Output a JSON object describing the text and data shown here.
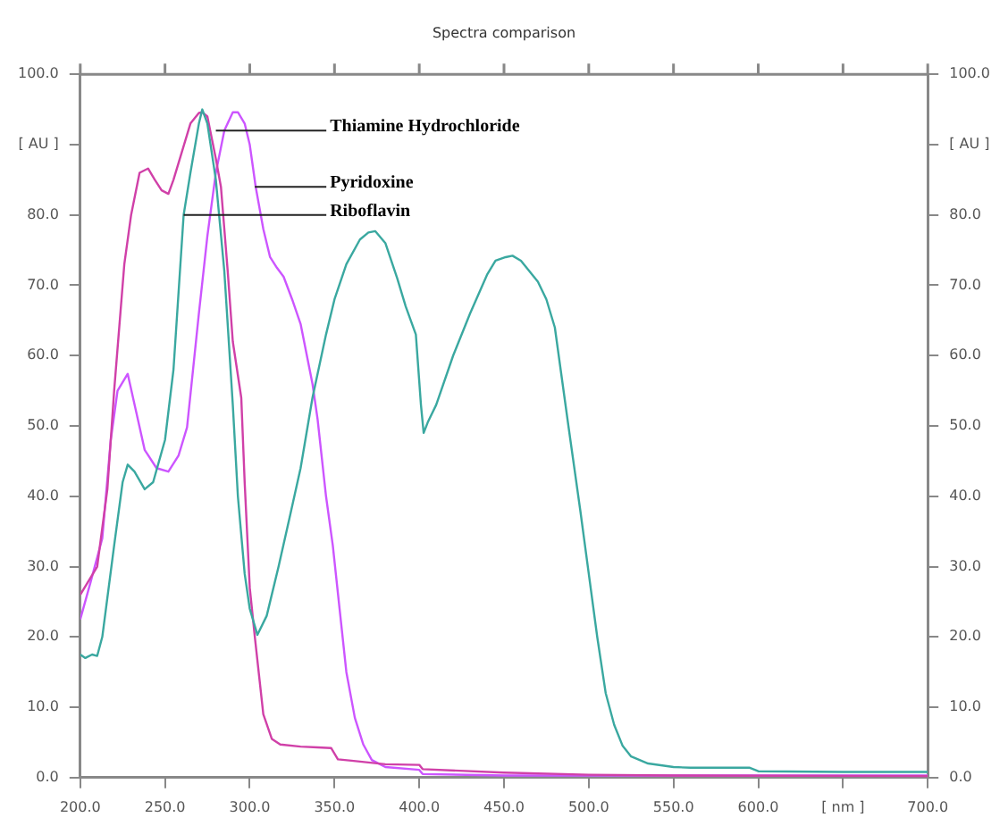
{
  "chart_data": {
    "type": "line",
    "title": "Spectra comparison",
    "xlim": [
      200,
      700
    ],
    "xticks": [
      {
        "value": 200,
        "label": "200.0"
      },
      {
        "value": 250,
        "label": "250.0"
      },
      {
        "value": 300,
        "label": "300.0"
      },
      {
        "value": 350,
        "label": "350.0"
      },
      {
        "value": 400,
        "label": "400.0"
      },
      {
        "value": 450,
        "label": "450.0"
      },
      {
        "value": 500,
        "label": "500.0"
      },
      {
        "value": 550,
        "label": "550.0"
      },
      {
        "value": 600,
        "label": "600.0"
      },
      {
        "value": 650,
        "label": "[ nm ]"
      },
      {
        "value": 700,
        "label": "700.0"
      }
    ],
    "ylim": [
      0,
      100
    ],
    "yticks": [
      {
        "value": 0,
        "label": "0.0"
      },
      {
        "value": 10,
        "label": "10.0"
      },
      {
        "value": 20,
        "label": "20.0"
      },
      {
        "value": 30,
        "label": "30.0"
      },
      {
        "value": 40,
        "label": "40.0"
      },
      {
        "value": 50,
        "label": "50.0"
      },
      {
        "value": 60,
        "label": "60.0"
      },
      {
        "value": 70,
        "label": "70.0"
      },
      {
        "value": 80,
        "label": "80.0"
      },
      {
        "value": 90,
        "label": "[ AU ]"
      },
      {
        "value": 100,
        "label": "100.0"
      }
    ],
    "y2lim": [
      0,
      100
    ],
    "y2ticks": [
      {
        "value": 0,
        "label": "0.0"
      },
      {
        "value": 10,
        "label": "10.0"
      },
      {
        "value": 20,
        "label": "20.0"
      },
      {
        "value": 30,
        "label": "30.0"
      },
      {
        "value": 40,
        "label": "40.0"
      },
      {
        "value": 50,
        "label": "50.0"
      },
      {
        "value": 60,
        "label": "60.0"
      },
      {
        "value": 70,
        "label": "70.0"
      },
      {
        "value": 80,
        "label": "80.0"
      },
      {
        "value": 90,
        "label": "[ AU ]"
      },
      {
        "value": 100,
        "label": "100.0"
      }
    ],
    "grid": false,
    "legend": false,
    "marker": "none",
    "line_style": "solid",
    "series": [
      {
        "color": "#3aa8a0",
        "x": [
          200,
          203,
          207,
          210,
          213,
          220,
          225,
          228,
          232,
          238,
          243,
          250,
          255,
          261,
          265,
          270,
          272,
          275,
          280,
          285,
          290,
          293,
          297,
          300,
          304.5,
          310,
          317,
          324,
          330,
          337,
          345,
          350,
          357,
          365,
          370,
          374,
          380,
          387,
          392,
          398,
          401,
          402.6,
          405,
          410,
          420,
          430,
          440,
          445,
          451,
          455,
          460,
          465,
          470,
          475,
          480,
          488,
          495,
          500,
          505,
          510,
          515,
          520,
          525,
          535,
          550,
          560,
          595,
          600,
          650,
          700
        ],
        "values": [
          17.5,
          17,
          17.5,
          17.3,
          20,
          33,
          42,
          44.5,
          43.5,
          41,
          42,
          48,
          58,
          80,
          86,
          93,
          95,
          93,
          85,
          72,
          53,
          40,
          29,
          24,
          20.3,
          23,
          30,
          37.5,
          44,
          54,
          63,
          68,
          73,
          76.5,
          77.5,
          77.7,
          76,
          71,
          67,
          63,
          53,
          49,
          50.5,
          53,
          60,
          66,
          71.5,
          73.5,
          74,
          74.2,
          73.5,
          72,
          70.5,
          68,
          64,
          50,
          38,
          29,
          20,
          12,
          7.5,
          4.5,
          3,
          2,
          1.5,
          1.4,
          1.4,
          0.9,
          0.8,
          0.8
        ]
      },
      {
        "color": "#d040a8",
        "x": [
          200,
          205,
          210,
          216,
          220,
          226,
          230,
          235,
          240,
          244,
          248,
          252,
          255,
          260,
          265,
          270,
          272,
          275,
          280,
          283,
          287,
          290,
          295,
          297,
          300,
          303,
          308,
          313,
          318,
          330,
          340,
          348,
          352,
          360,
          380,
          400,
          402,
          450,
          500,
          550,
          700
        ],
        "values": [
          26,
          28,
          30,
          41,
          55,
          73,
          80,
          86,
          86.6,
          85,
          83.5,
          83,
          85,
          89,
          93,
          94.5,
          94.6,
          94,
          88,
          84,
          72,
          62,
          54,
          42,
          27,
          20,
          9,
          5.5,
          4.7,
          4.4,
          4.3,
          4.2,
          2.6,
          2.4,
          1.9,
          1.8,
          1.2,
          0.7,
          0.4,
          0.3,
          0.2
        ]
      },
      {
        "color": "#cc55ff",
        "x": [
          200,
          206,
          213,
          218,
          222,
          228,
          233,
          238,
          245,
          252,
          258,
          263,
          270,
          275,
          280,
          285,
          290,
          293,
          297,
          300,
          303.5,
          308,
          312,
          316,
          320,
          325,
          330,
          337,
          340,
          345,
          349,
          353,
          357,
          362,
          367,
          372,
          380,
          400,
          402,
          450,
          700
        ],
        "values": [
          22.5,
          27.7,
          34,
          48,
          55,
          57.4,
          52,
          46.6,
          44,
          43.5,
          45.8,
          49.8,
          66,
          77,
          86,
          92,
          94.6,
          94.6,
          93,
          90,
          84,
          78,
          74,
          72.5,
          71.2,
          68,
          64.5,
          56,
          51,
          40,
          33,
          24,
          15,
          8.5,
          4.7,
          2.5,
          1.5,
          1.1,
          0.5,
          0.3,
          0.3
        ]
      }
    ],
    "annotations": [
      {
        "text": "Thiamine Hydrochloride",
        "x": 280,
        "y": 92
      },
      {
        "text": "Pyridoxine",
        "x": 303,
        "y": 84
      },
      {
        "text": "Riboflavin",
        "x": 261,
        "y": 80
      }
    ]
  }
}
